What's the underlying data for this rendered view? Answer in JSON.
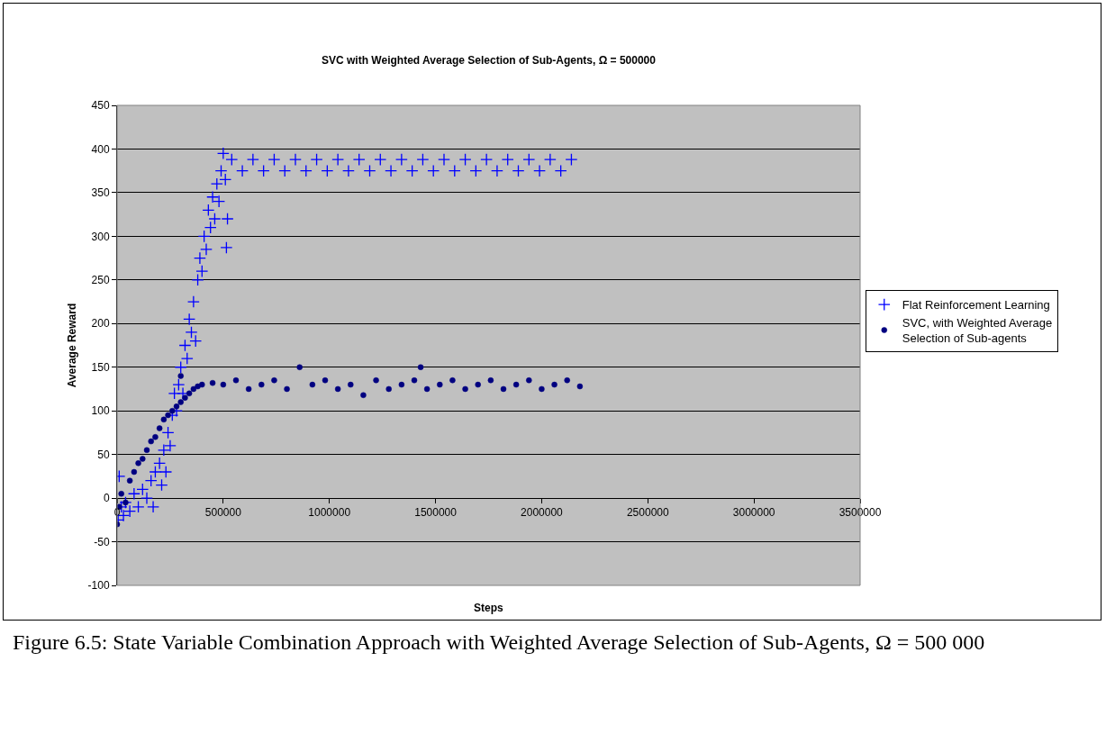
{
  "chart_data": {
    "type": "scatter",
    "title": "SVC with Weighted Average Selection of Sub-Agents, Ω = 500000",
    "xlabel": "Steps",
    "ylabel": "Average Reward",
    "annotations": [
      "Figure 6.5: State Variable Combination Approach with Weighted Average Selection of Sub-Agents, Ω = 500 000"
    ],
    "xlim": [
      0,
      3500000
    ],
    "xticks": [
      0,
      500000,
      1000000,
      1500000,
      2000000,
      2500000,
      3000000,
      3500000
    ],
    "ylim": [
      -100,
      450
    ],
    "yticks": [
      -100,
      -50,
      0,
      50,
      100,
      150,
      200,
      250,
      300,
      350,
      400,
      450
    ],
    "grid": "y",
    "legend": "right",
    "series": [
      {
        "name": "Flat Reinforcement Learning",
        "color": "#0000ff",
        "marker": "cross",
        "x": [
          5000,
          10000,
          20000,
          30000,
          40000,
          60000,
          80000,
          100000,
          120000,
          140000,
          160000,
          170000,
          180000,
          200000,
          210000,
          220000,
          230000,
          240000,
          250000,
          260000,
          270000,
          280000,
          290000,
          300000,
          310000,
          320000,
          330000,
          340000,
          350000,
          360000,
          370000,
          380000,
          390000,
          400000,
          410000,
          420000,
          430000,
          440000,
          450000,
          460000,
          470000,
          480000,
          490000,
          500000,
          510000,
          520000,
          515000,
          540000,
          590000,
          640000,
          690000,
          740000,
          790000,
          840000,
          890000,
          940000,
          990000,
          1040000,
          1090000,
          1140000,
          1190000,
          1240000,
          1290000,
          1340000,
          1390000,
          1440000,
          1490000,
          1540000,
          1590000,
          1640000,
          1690000,
          1740000,
          1790000,
          1840000,
          1890000,
          1940000,
          1990000,
          2040000,
          2090000,
          2140000
        ],
        "values": [
          -25,
          25,
          -10,
          -20,
          -5,
          -15,
          5,
          -10,
          10,
          0,
          20,
          -10,
          30,
          40,
          15,
          55,
          30,
          75,
          60,
          95,
          120,
          100,
          130,
          150,
          120,
          175,
          160,
          205,
          190,
          225,
          180,
          250,
          275,
          260,
          300,
          285,
          330,
          310,
          345,
          320,
          360,
          340,
          375,
          395,
          365,
          320,
          287,
          388,
          375,
          388,
          375,
          388,
          375,
          388,
          375,
          388,
          375,
          388,
          375,
          388,
          375,
          388,
          375,
          388,
          375,
          388,
          375,
          388,
          375,
          388,
          375,
          388,
          375,
          388,
          375,
          388,
          375,
          388,
          375,
          388
        ]
      },
      {
        "name": "SVC, with Weighted Average Selection of Sub-agents",
        "color": "#000080",
        "marker": "circle",
        "x": [
          0,
          10000,
          20000,
          40000,
          60000,
          80000,
          100000,
          120000,
          140000,
          160000,
          180000,
          200000,
          220000,
          240000,
          260000,
          280000,
          300000,
          300000,
          320000,
          340000,
          360000,
          380000,
          400000,
          450000,
          500000,
          560000,
          620000,
          680000,
          740000,
          800000,
          860000,
          920000,
          980000,
          1040000,
          1100000,
          1160000,
          1220000,
          1280000,
          1340000,
          1400000,
          1430000,
          1460000,
          1520000,
          1580000,
          1640000,
          1700000,
          1760000,
          1820000,
          1880000,
          1940000,
          2000000,
          2060000,
          2120000,
          2180000
        ],
        "values": [
          -30,
          -10,
          5,
          -5,
          20,
          30,
          40,
          45,
          55,
          65,
          70,
          80,
          90,
          95,
          100,
          105,
          110,
          140,
          115,
          120,
          125,
          128,
          130,
          132,
          130,
          135,
          125,
          130,
          135,
          125,
          150,
          130,
          135,
          125,
          130,
          118,
          135,
          125,
          130,
          135,
          150,
          125,
          130,
          135,
          125,
          130,
          135,
          125,
          130,
          135,
          125,
          130,
          135,
          128
        ]
      }
    ]
  }
}
